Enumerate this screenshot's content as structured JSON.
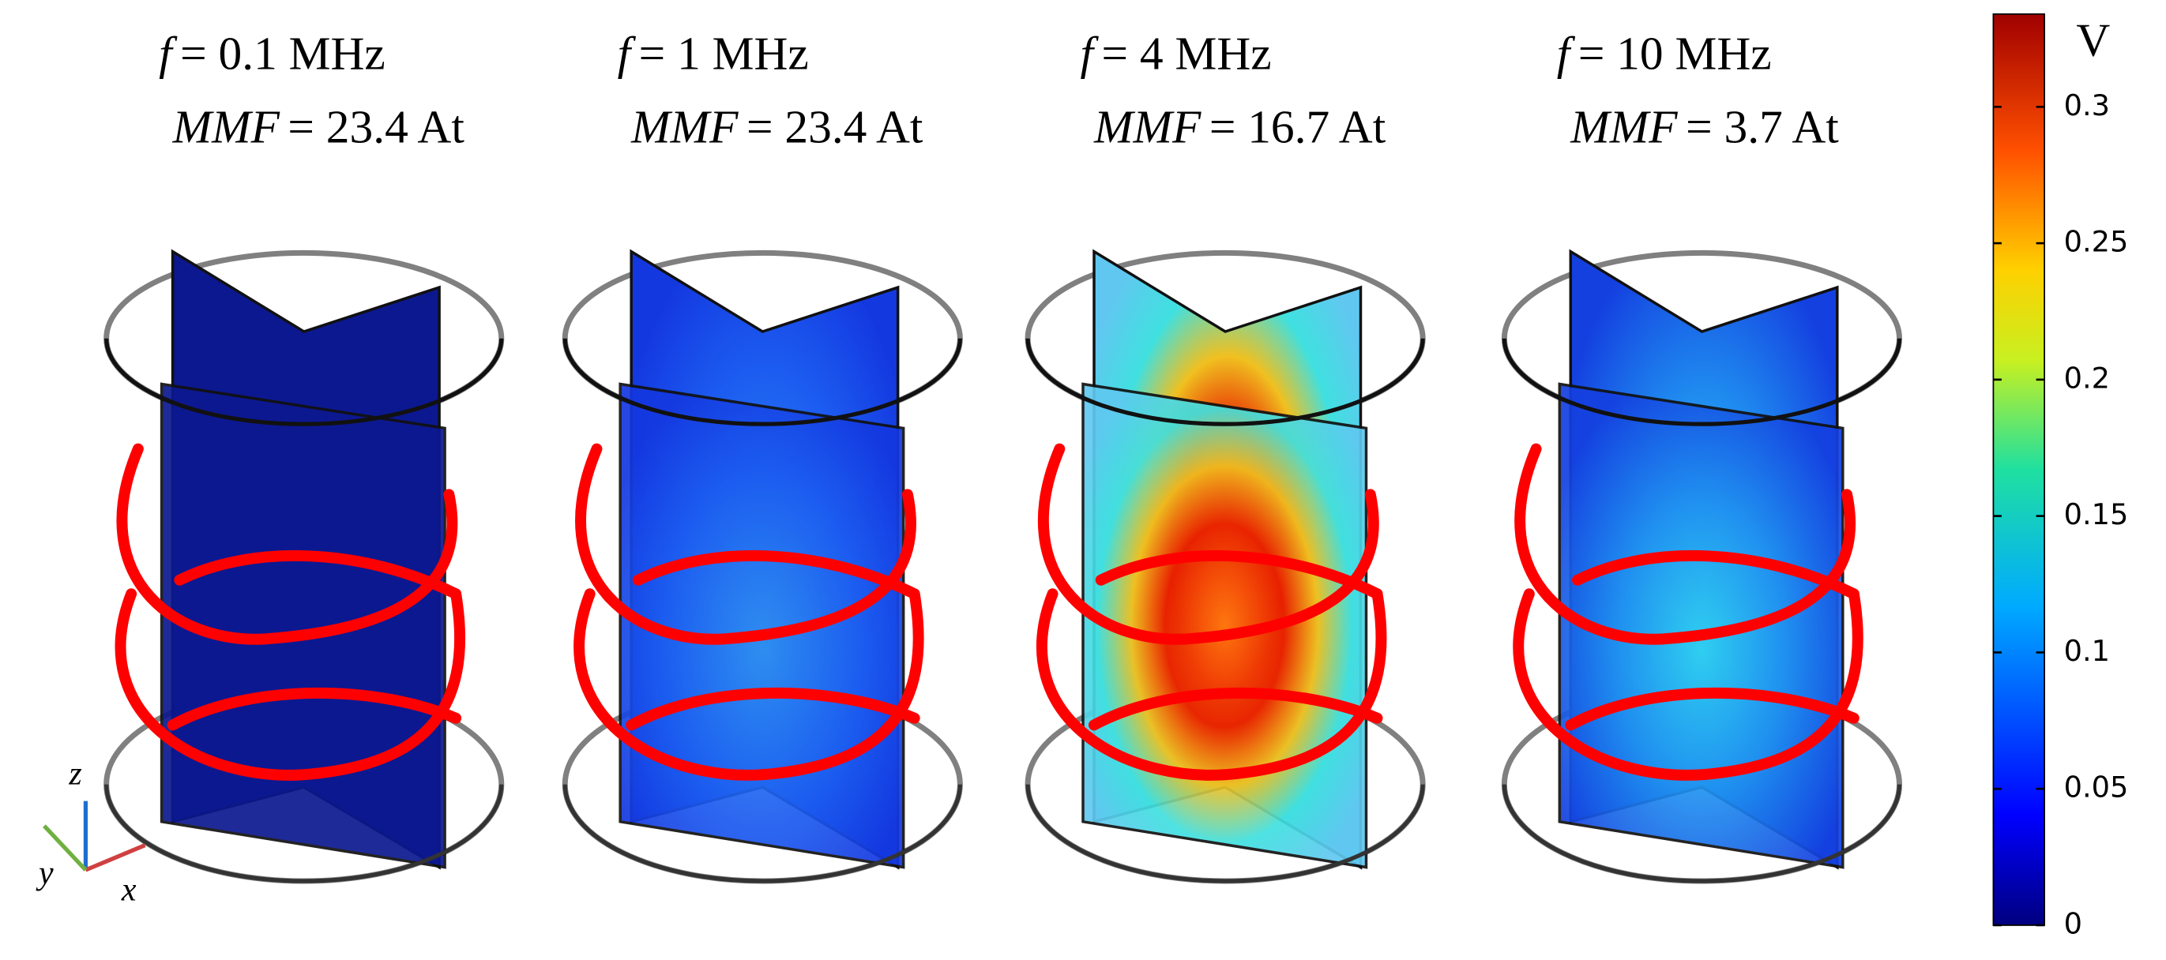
{
  "symbols": {
    "frequency": "f",
    "mmf": "MMF"
  },
  "panels": [
    {
      "frequency": "= 0.1 MHz",
      "mmf": "= 23.4 At"
    },
    {
      "frequency": "= 1 MHz",
      "mmf": "= 23.4 At"
    },
    {
      "frequency": "= 4 MHz",
      "mmf": "= 16.7 At"
    },
    {
      "frequency": "= 10 MHz",
      "mmf": "= 3.7 At"
    }
  ],
  "colorbar": {
    "unit": "V",
    "range": [
      0,
      0.334
    ],
    "ticks": [
      0,
      0.05,
      0.1,
      0.15,
      0.2,
      0.25,
      0.3
    ]
  },
  "axes": {
    "labels": [
      "z",
      "y",
      "x"
    ]
  }
}
